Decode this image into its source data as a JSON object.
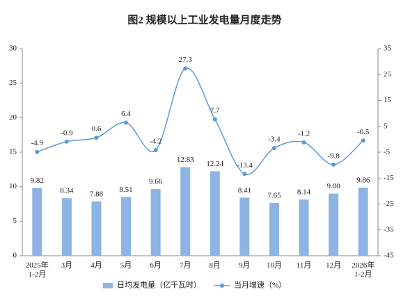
{
  "chart_data": {
    "type": "bar",
    "title": "图2 规模以上工业发电量月度走势",
    "categories": [
      "2025年\n1-2月",
      "3月",
      "4月",
      "5月",
      "6月",
      "7月",
      "8月",
      "9月",
      "10月",
      "11月",
      "12月",
      "2026年\n1-2月"
    ],
    "series": [
      {
        "name": "日均发电量（亿千瓦时）",
        "type": "bar",
        "color": "#8db4e2",
        "values": [
          9.82,
          8.34,
          7.88,
          8.51,
          9.66,
          12.83,
          12.24,
          8.41,
          7.65,
          8.14,
          9.0,
          9.86
        ],
        "value_labels": [
          "9.82",
          "8.34",
          "7.88",
          "8.51",
          "9.66",
          "12.83",
          "12.24",
          "8.41",
          "7.65",
          "8.14",
          "9.00",
          "9.86"
        ]
      },
      {
        "name": "当月增速（%）",
        "type": "line",
        "axis": "y2",
        "color": "#5b9bd5",
        "values": [
          -4.9,
          -0.9,
          0.6,
          6.4,
          -4.2,
          27.3,
          7.7,
          -13.4,
          -3.4,
          -1.2,
          -9.8,
          -0.5
        ]
      }
    ],
    "ylim": [
      0,
      30
    ],
    "yticks": [
      0,
      5,
      10,
      15,
      20,
      25,
      30
    ],
    "y2lim": [
      -45,
      35
    ],
    "y2ticks": [
      -45,
      -35,
      -25,
      -15,
      -5,
      5,
      15,
      25,
      35
    ],
    "grid": false
  }
}
